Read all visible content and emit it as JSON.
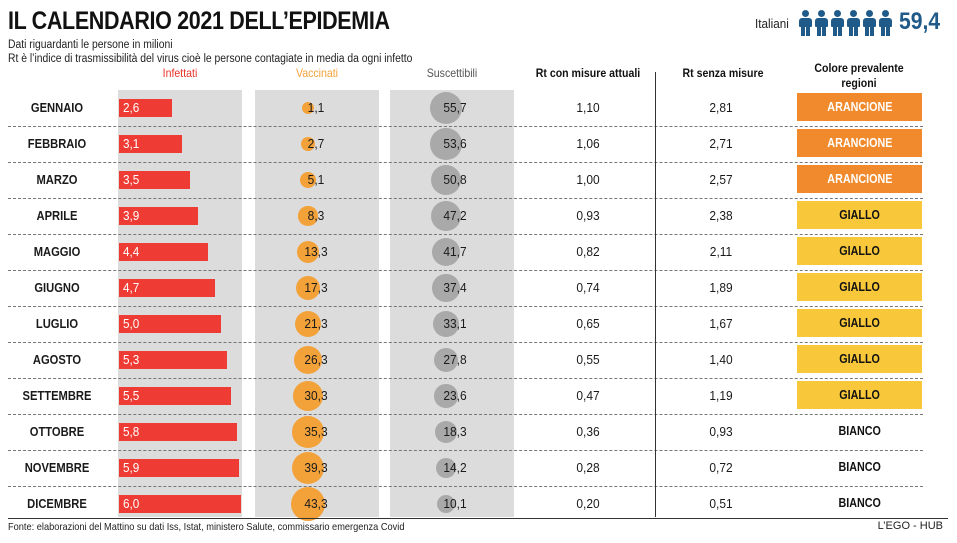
{
  "title": "IL CALENDARIO 2021 DELL’EPIDEMIA",
  "subtitle_1": "Dati riguardanti le persone in milioni",
  "subtitle_2": "Rt è l’indice di trasmissibilità del virus cioè le persone contagiate in media da ogni infetto",
  "population": {
    "label": "Italiani",
    "value": "59,4",
    "icon": "person-icon",
    "icon_count": 6,
    "color": "#1f5a88"
  },
  "headers": {
    "infetti": "Infettati",
    "vaccinati": "Vaccinati",
    "suscettibili": "Suscettibili",
    "rt_attuali": "Rt con misure attuali",
    "rt_senza": "Rt senza misure",
    "colore": "Colore prevalente regioni"
  },
  "colors": {
    "infetti": "#ee3b33",
    "vaccinati": "#f3a23a",
    "suscettibili": "#a9a9a9",
    "arancione": "#f08a2c",
    "giallo": "#f8c83a",
    "bianco": "#ffffff"
  },
  "chart_data": {
    "type": "table",
    "title": "IL CALENDARIO 2021 DELL’EPIDEMIA",
    "unit": "milioni",
    "rows": [
      {
        "month": "GENNAIO",
        "infetti": "2,6",
        "vaccinati": "1,1",
        "suscettibili": "55,7",
        "rt_attuali": "1,10",
        "rt_senza": "2,81",
        "colore": "ARANCIONE"
      },
      {
        "month": "FEBBRAIO",
        "infetti": "3,1",
        "vaccinati": "2,7",
        "suscettibili": "53,6",
        "rt_attuali": "1,06",
        "rt_senza": "2,71",
        "colore": "ARANCIONE"
      },
      {
        "month": "MARZO",
        "infetti": "3,5",
        "vaccinati": "5,1",
        "suscettibili": "50,8",
        "rt_attuali": "1,00",
        "rt_senza": "2,57",
        "colore": "ARANCIONE"
      },
      {
        "month": "APRILE",
        "infetti": "3,9",
        "vaccinati": "8,3",
        "suscettibili": "47,2",
        "rt_attuali": "0,93",
        "rt_senza": "2,38",
        "colore": "GIALLO"
      },
      {
        "month": "MAGGIO",
        "infetti": "4,4",
        "vaccinati": "13,3",
        "suscettibili": "41,7",
        "rt_attuali": "0,82",
        "rt_senza": "2,11",
        "colore": "GIALLO"
      },
      {
        "month": "GIUGNO",
        "infetti": "4,7",
        "vaccinati": "17,3",
        "suscettibili": "37,4",
        "rt_attuali": "0,74",
        "rt_senza": "1,89",
        "colore": "GIALLO"
      },
      {
        "month": "LUGLIO",
        "infetti": "5,0",
        "vaccinati": "21,3",
        "suscettibili": "33,1",
        "rt_attuali": "0,65",
        "rt_senza": "1,67",
        "colore": "GIALLO"
      },
      {
        "month": "AGOSTO",
        "infetti": "5,3",
        "vaccinati": "26,3",
        "suscettibili": "27,8",
        "rt_attuali": "0,55",
        "rt_senza": "1,40",
        "colore": "GIALLO"
      },
      {
        "month": "SETTEMBRE",
        "infetti": "5,5",
        "vaccinati": "30,3",
        "suscettibili": "23,6",
        "rt_attuali": "0,47",
        "rt_senza": "1,19",
        "colore": "GIALLO"
      },
      {
        "month": "OTTOBRE",
        "infetti": "5,8",
        "vaccinati": "35,3",
        "suscettibili": "18,3",
        "rt_attuali": "0,36",
        "rt_senza": "0,93",
        "colore": "BIANCO"
      },
      {
        "month": "NOVEMBRE",
        "infetti": "5,9",
        "vaccinati": "39,3",
        "suscettibili": "14,2",
        "rt_attuali": "0,28",
        "rt_senza": "0,72",
        "colore": "BIANCO"
      },
      {
        "month": "DICEMBRE",
        "infetti": "6,0",
        "vaccinati": "43,3",
        "suscettibili": "10,1",
        "rt_attuali": "0,20",
        "rt_senza": "0,51",
        "colore": "BIANCO"
      }
    ]
  },
  "footer": {
    "source": "Fonte: elaborazioni del Mattino su dati Iss, Istat, ministero Salute, commissario emergenza Covid",
    "credit": "L’EGO - HUB"
  }
}
